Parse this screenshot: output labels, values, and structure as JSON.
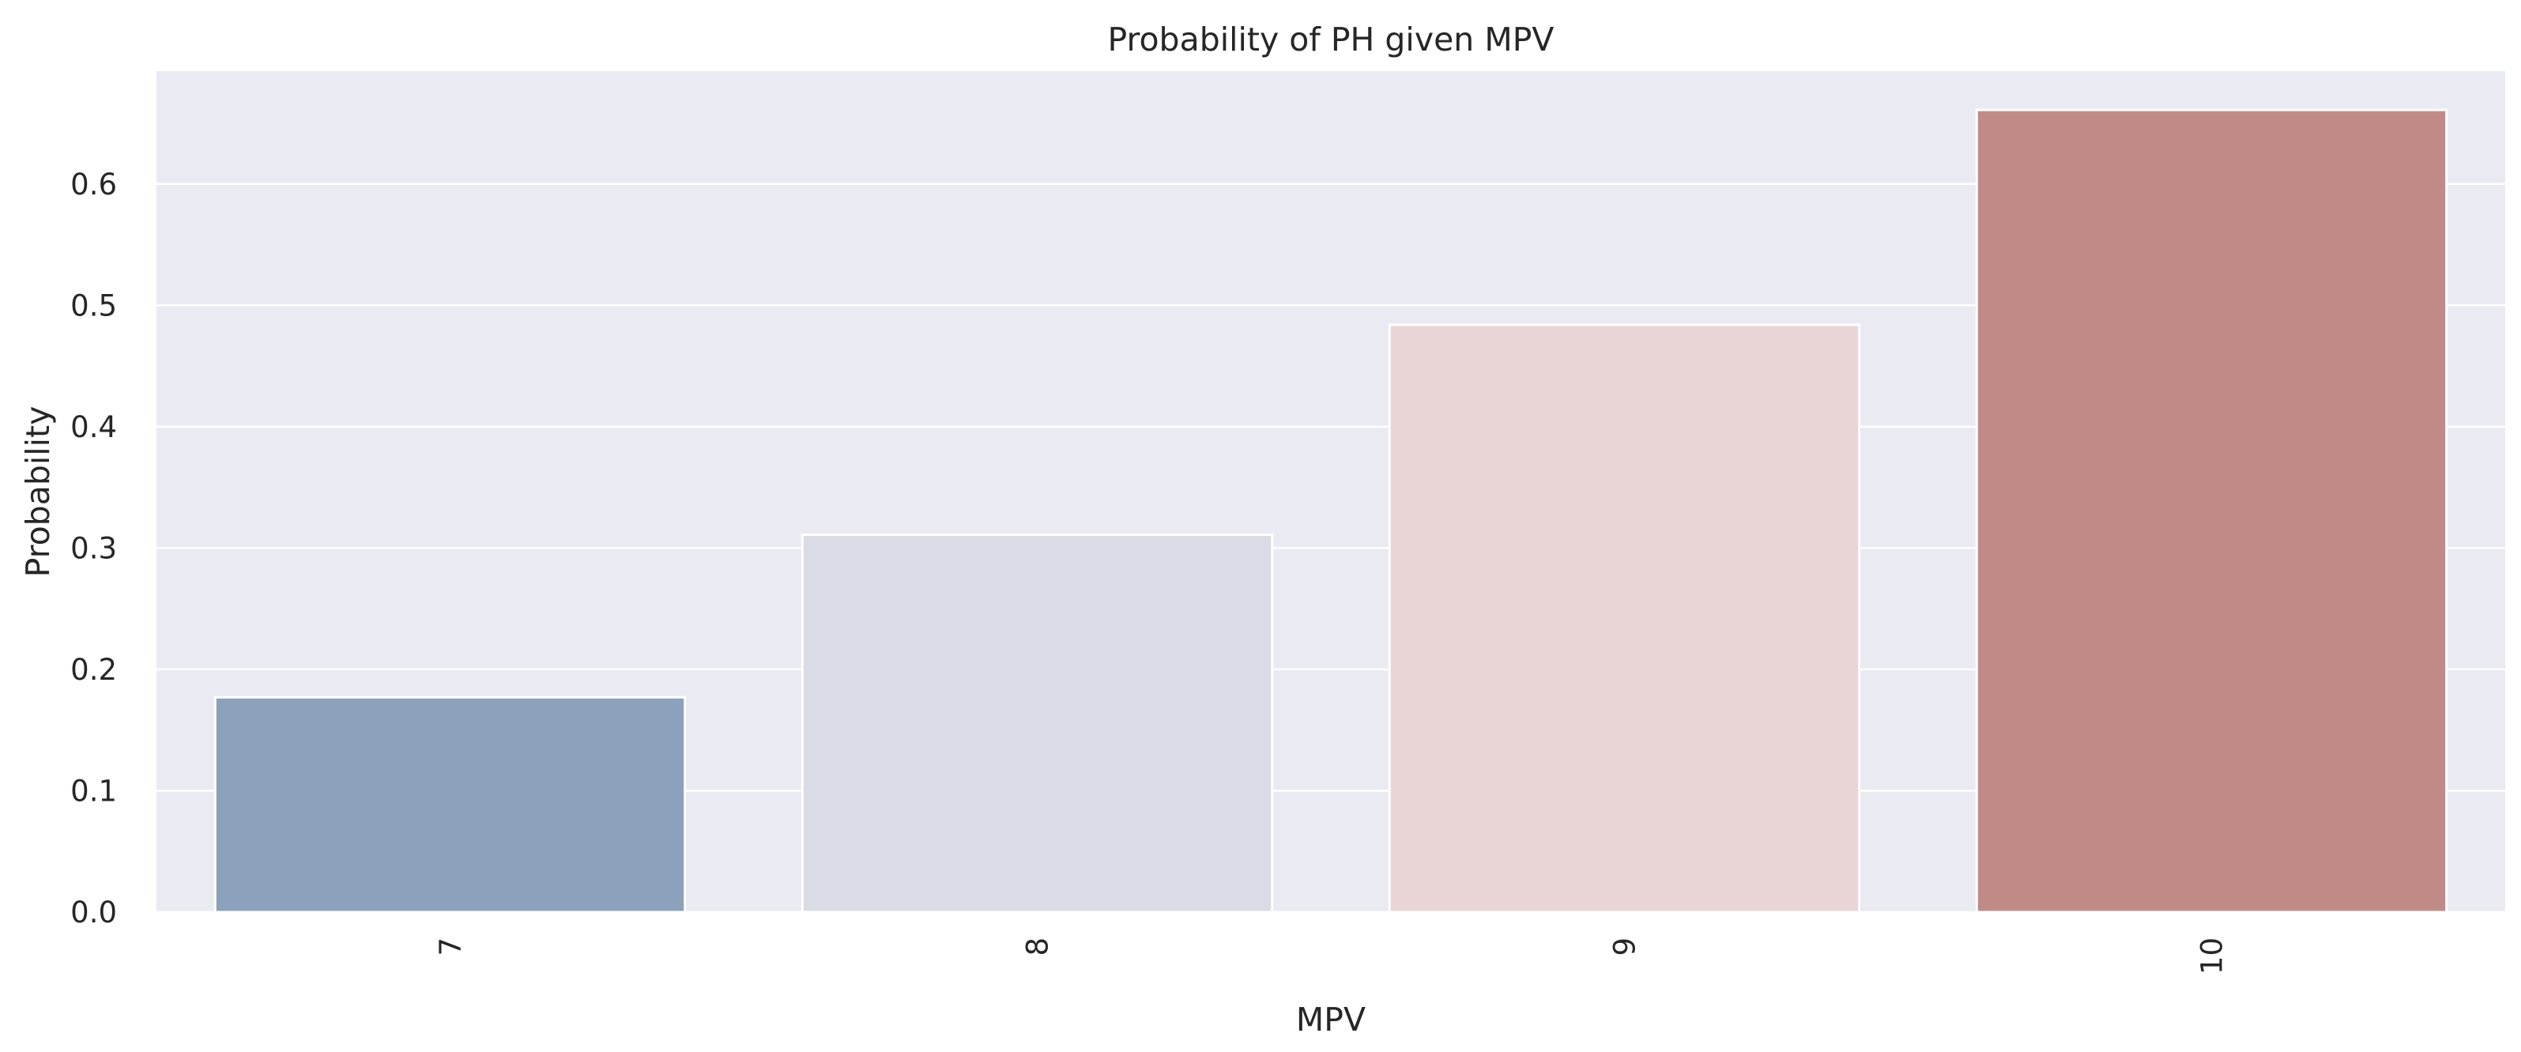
{
  "chart_data": {
    "type": "bar",
    "title": "Probability of PH given MPV",
    "xlabel": "MPV",
    "ylabel": "Probability",
    "categories": [
      "7",
      "8",
      "9",
      "10"
    ],
    "values": [
      0.177,
      0.311,
      0.484,
      0.661
    ],
    "ylim": [
      0,
      0.693
    ],
    "yticks": [
      "0.0",
      "0.1",
      "0.2",
      "0.3",
      "0.4",
      "0.5",
      "0.6"
    ],
    "x_tick_rotation": "vertical",
    "grid": true,
    "legend": "none",
    "colors": {
      "background": "#eaeaf2",
      "grid": "#ffffff",
      "text": "#262626",
      "bars": [
        "#8ca1bc",
        "#d9dce4",
        "#e9d5d5",
        "#c08b87"
      ]
    }
  }
}
